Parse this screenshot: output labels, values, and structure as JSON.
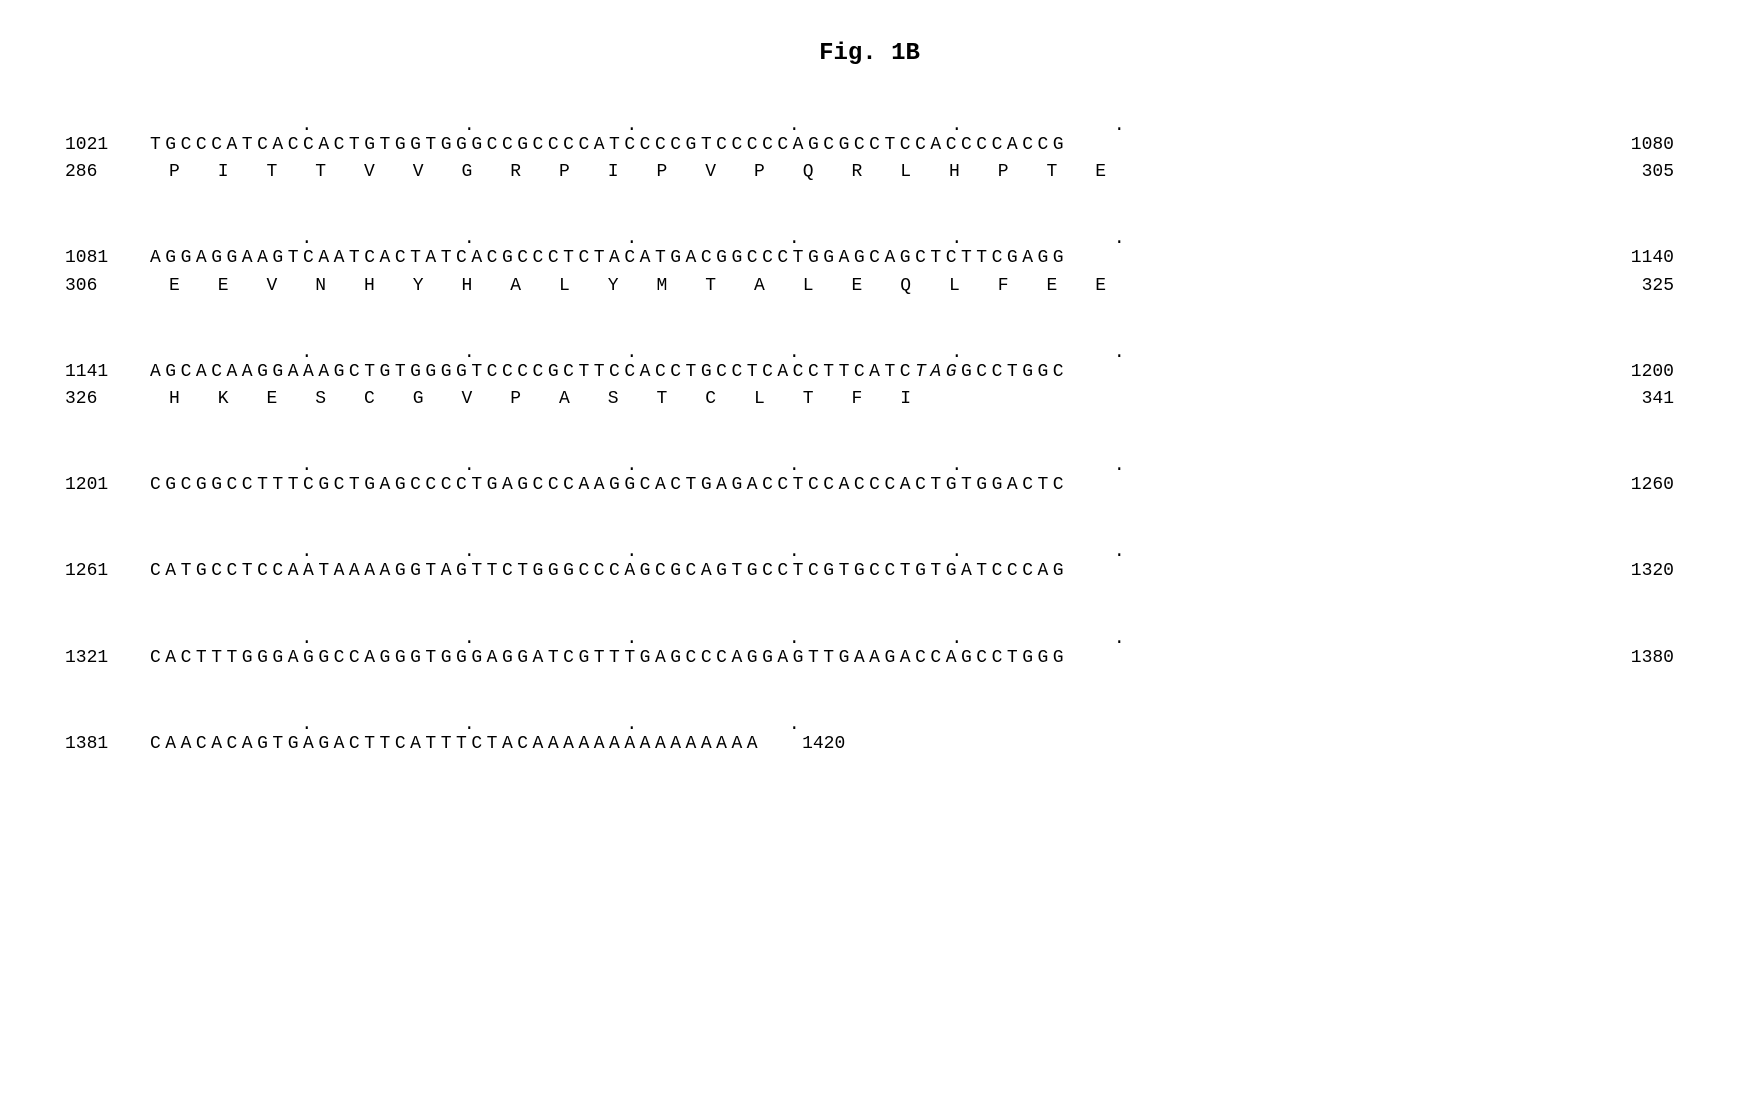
{
  "figure_title": "Fig. 1B",
  "font_family": "Courier New",
  "title_fontsize": 24,
  "body_fontsize": 18,
  "background_color": "#ffffff",
  "text_color": "#000000",
  "tick_interval": 10,
  "blocks": [
    {
      "nuc_start": "1021",
      "nuc_sequence": "TGCCCATCACCACTGTGGTGGGCCGCCCCATCCCCGTCCCCCAGCGCCTCCACCCCACCG",
      "nuc_end": "1080",
      "aa_start": "286",
      "amino_acids": [
        "P",
        "I",
        "T",
        "T",
        "V",
        "V",
        "G",
        "R",
        "P",
        "I",
        "P",
        "V",
        "P",
        "Q",
        "R",
        "L",
        "H",
        "P",
        "T",
        "E"
      ],
      "aa_end": "305",
      "show_all_ticks": true
    },
    {
      "nuc_start": "1081",
      "nuc_sequence": "AGGAGGAAGTCAATCACTATCACGCCCTCTACATGACGGCCCTGGAGCAGCTCTTCGAGG",
      "nuc_end": "1140",
      "aa_start": "306",
      "amino_acids": [
        "E",
        "E",
        "V",
        "N",
        "H",
        "Y",
        "H",
        "A",
        "L",
        "Y",
        "M",
        "T",
        "A",
        "L",
        "E",
        "Q",
        "L",
        "F",
        "E",
        "E"
      ],
      "aa_end": "325",
      "show_all_ticks": true
    },
    {
      "nuc_start": "1141",
      "nuc_sequence_parts": [
        {
          "text": "AGCACAAGGAAAGCTGTGGGGTCCCCGCTTCCACCTGCCTCACCTTCATC",
          "italic": false
        },
        {
          "text": "TAG",
          "italic": true
        },
        {
          "text": "GCCTGGC",
          "italic": false
        }
      ],
      "nuc_end": "1200",
      "aa_start": "326",
      "amino_acids": [
        "H",
        "K",
        "E",
        "S",
        "C",
        "G",
        "V",
        "P",
        "A",
        "S",
        "T",
        "C",
        "L",
        "T",
        "F",
        "I"
      ],
      "aa_end": "341",
      "show_all_ticks": true
    },
    {
      "nuc_start": "1201",
      "nuc_sequence": "CGCGGCCTTTCGCTGAGCCCCTGAGCCCAAGGCACTGAGACCTCCACCCACTGTGGACTC",
      "nuc_end": "1260",
      "show_all_ticks": true
    },
    {
      "nuc_start": "1261",
      "nuc_sequence": "CATGCCTCCAATAAAAGGTAGTTCTGGGCCCAGCGCAGTGCCTCGTGCCTGTGATCCCAG",
      "nuc_end": "1320",
      "show_all_ticks": true
    },
    {
      "nuc_start": "1321",
      "nuc_sequence": "CACTTTGGGAGGCCAGGGTGGGAGGATCGTTTGAGCCCAGGAGTTGAAGACCAGCCTGGG",
      "nuc_end": "1380",
      "show_all_ticks": true
    },
    {
      "nuc_start": "1381",
      "nuc_sequence": "CAACACAGTGAGACTTCATTTCTACAAAAAAAAAAAAAAA",
      "nuc_end_inline": "1420",
      "tick_count": 4
    }
  ]
}
